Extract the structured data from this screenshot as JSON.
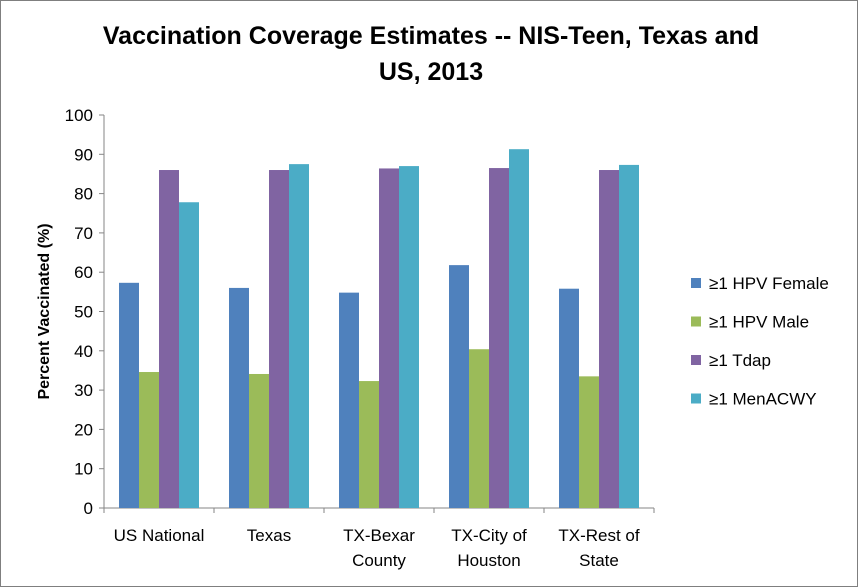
{
  "chart_data": {
    "type": "bar",
    "title": "Vaccination Coverage Estimates -- NIS-Teen, Texas and US, 2013",
    "title_lines": [
      "Vaccination Coverage Estimates -- NIS-Teen, Texas and",
      "US, 2013"
    ],
    "ylabel": "Percent Vaccinated (%)",
    "xlabel": "",
    "ylim": [
      0,
      100
    ],
    "yticks": [
      0,
      10,
      20,
      30,
      40,
      50,
      60,
      70,
      80,
      90,
      100
    ],
    "grid": false,
    "legend_position": "right",
    "categories": [
      [
        "US National"
      ],
      [
        "Texas"
      ],
      [
        "TX-Bexar",
        "County"
      ],
      [
        "TX-City of",
        "Houston"
      ],
      [
        "TX-Rest of",
        "State"
      ]
    ],
    "series": [
      {
        "name": "≥1 HPV Female",
        "color": "#4F81BD",
        "values": [
          57.3,
          56.0,
          54.8,
          61.8,
          55.8
        ]
      },
      {
        "name": "≥1 HPV Male",
        "color": "#9BBB59",
        "values": [
          34.6,
          34.1,
          32.3,
          40.4,
          33.5
        ]
      },
      {
        "name": "≥1 Tdap",
        "color": "#8064A2",
        "values": [
          86.0,
          86.0,
          86.4,
          86.5,
          86.0
        ]
      },
      {
        "name": "≥1 MenACWY",
        "color": "#4BACC6",
        "values": [
          77.8,
          87.5,
          87.0,
          91.3,
          87.3
        ]
      }
    ]
  }
}
